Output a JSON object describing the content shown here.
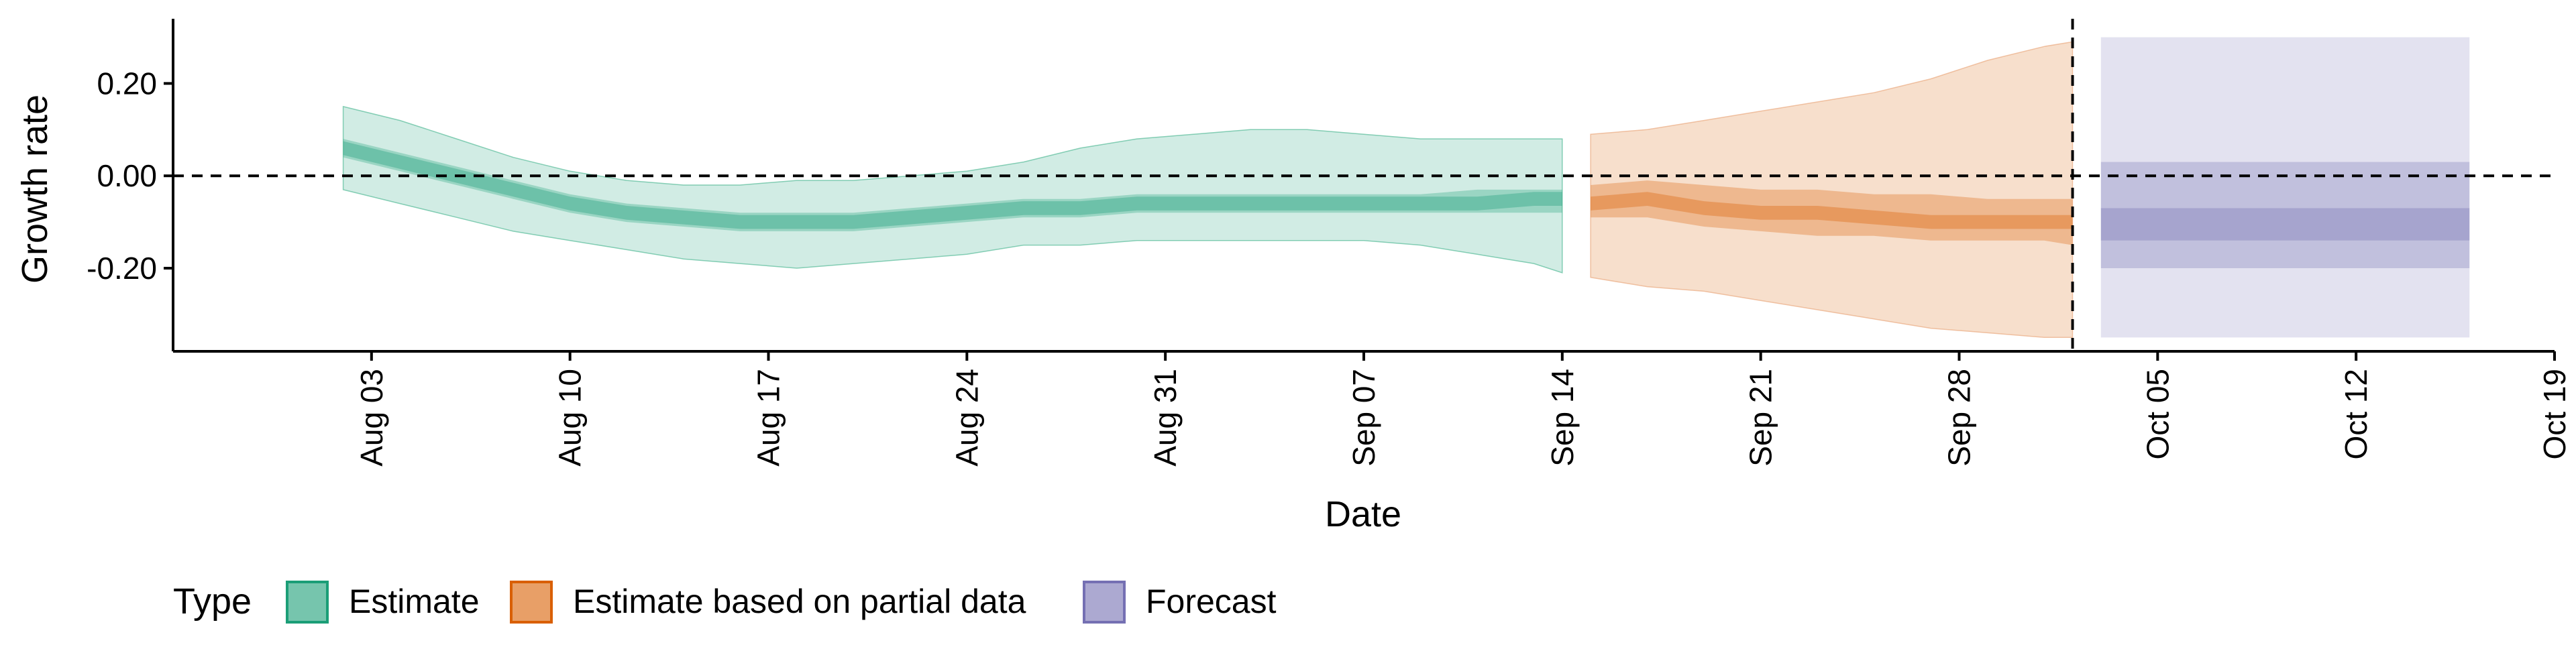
{
  "chart_data": {
    "type": "area",
    "xlabel": "Date",
    "ylabel": "Growth rate",
    "x_ticks": [
      "Aug 03",
      "Aug 10",
      "Aug 17",
      "Aug 24",
      "Aug 31",
      "Sep 07",
      "Sep 14",
      "Sep 21",
      "Sep 28",
      "Oct 05",
      "Oct 12",
      "Oct 19"
    ],
    "y_ticks": [
      "0.20",
      "0.00",
      "-0.20"
    ],
    "y_tick_values": [
      0.2,
      0.0,
      -0.2
    ],
    "xlim": [
      "2021-07-27",
      "2021-10-19"
    ],
    "ylim": [
      -0.38,
      0.34
    ],
    "reference_lines": {
      "horizontal_y": 0.0,
      "vertical_x": "2021-10-02"
    },
    "legend": {
      "title": "Type",
      "placement": "bottom-left",
      "entries": [
        {
          "label": "Estimate",
          "color": "#1b9e77"
        },
        {
          "label": "Estimate based on partial data",
          "color": "#d95f02"
        },
        {
          "label": "Forecast",
          "color": "#7570b3"
        }
      ]
    },
    "colors": {
      "estimate_fill": "#1b9e77",
      "partial_fill": "#d95f02",
      "forecast_fill": "#7570b3",
      "estimate_edge": "#3fb28a",
      "partial_edge": "#e8a072"
    },
    "series": [
      {
        "name": "Estimate",
        "x": [
          "2021-08-02",
          "2021-08-04",
          "2021-08-06",
          "2021-08-08",
          "2021-08-10",
          "2021-08-12",
          "2021-08-14",
          "2021-08-16",
          "2021-08-18",
          "2021-08-20",
          "2021-08-22",
          "2021-08-24",
          "2021-08-26",
          "2021-08-28",
          "2021-08-30",
          "2021-09-01",
          "2021-09-03",
          "2021-09-05",
          "2021-09-07",
          "2021-09-09",
          "2021-09-11",
          "2021-09-13",
          "2021-09-14"
        ],
        "median": [
          0.06,
          0.03,
          0.0,
          -0.03,
          -0.06,
          -0.08,
          -0.09,
          -0.1,
          -0.1,
          -0.1,
          -0.09,
          -0.08,
          -0.07,
          -0.07,
          -0.06,
          -0.06,
          -0.06,
          -0.06,
          -0.06,
          -0.06,
          -0.06,
          -0.05,
          -0.05
        ],
        "lower50": [
          0.04,
          0.01,
          -0.02,
          -0.05,
          -0.08,
          -0.1,
          -0.11,
          -0.12,
          -0.12,
          -0.12,
          -0.11,
          -0.1,
          -0.09,
          -0.09,
          -0.08,
          -0.08,
          -0.08,
          -0.08,
          -0.08,
          -0.08,
          -0.08,
          -0.08,
          -0.08
        ],
        "upper50": [
          0.08,
          0.05,
          0.02,
          -0.01,
          -0.04,
          -0.06,
          -0.07,
          -0.08,
          -0.08,
          -0.08,
          -0.07,
          -0.06,
          -0.05,
          -0.05,
          -0.04,
          -0.04,
          -0.04,
          -0.04,
          -0.04,
          -0.04,
          -0.03,
          -0.03,
          -0.03
        ],
        "lower90": [
          -0.03,
          -0.06,
          -0.09,
          -0.12,
          -0.14,
          -0.16,
          -0.18,
          -0.19,
          -0.2,
          -0.19,
          -0.18,
          -0.17,
          -0.15,
          -0.15,
          -0.14,
          -0.14,
          -0.14,
          -0.14,
          -0.14,
          -0.15,
          -0.17,
          -0.19,
          -0.21
        ],
        "upper90": [
          0.15,
          0.12,
          0.08,
          0.04,
          0.01,
          -0.01,
          -0.02,
          -0.02,
          -0.01,
          -0.01,
          0.0,
          0.01,
          0.03,
          0.06,
          0.08,
          0.09,
          0.1,
          0.1,
          0.09,
          0.08,
          0.08,
          0.08,
          0.08
        ]
      },
      {
        "name": "Estimate based on partial data",
        "x": [
          "2021-09-15",
          "2021-09-17",
          "2021-09-19",
          "2021-09-21",
          "2021-09-23",
          "2021-09-25",
          "2021-09-27",
          "2021-09-29",
          "2021-10-01",
          "2021-10-02"
        ],
        "median": [
          -0.06,
          -0.05,
          -0.07,
          -0.08,
          -0.08,
          -0.09,
          -0.1,
          -0.1,
          -0.1,
          -0.1
        ],
        "lower50": [
          -0.09,
          -0.09,
          -0.11,
          -0.12,
          -0.13,
          -0.13,
          -0.14,
          -0.14,
          -0.14,
          -0.15
        ],
        "upper50": [
          -0.02,
          -0.01,
          -0.02,
          -0.03,
          -0.03,
          -0.04,
          -0.04,
          -0.05,
          -0.05,
          -0.05
        ],
        "lower90": [
          -0.22,
          -0.24,
          -0.25,
          -0.27,
          -0.29,
          -0.31,
          -0.33,
          -0.34,
          -0.35,
          -0.35
        ],
        "upper90": [
          0.09,
          0.1,
          0.12,
          0.14,
          0.16,
          0.18,
          0.21,
          0.25,
          0.28,
          0.29
        ]
      },
      {
        "name": "Forecast",
        "x": [
          "2021-10-03",
          "2021-10-16"
        ],
        "median": [
          -0.1,
          -0.1
        ],
        "lower25": [
          -0.14,
          -0.14
        ],
        "upper25": [
          -0.07,
          -0.07
        ],
        "lower50": [
          -0.2,
          -0.2
        ],
        "upper50": [
          0.03,
          0.03
        ],
        "lower90": [
          -0.35,
          -0.35
        ],
        "upper90": [
          0.3,
          0.3
        ]
      }
    ]
  }
}
